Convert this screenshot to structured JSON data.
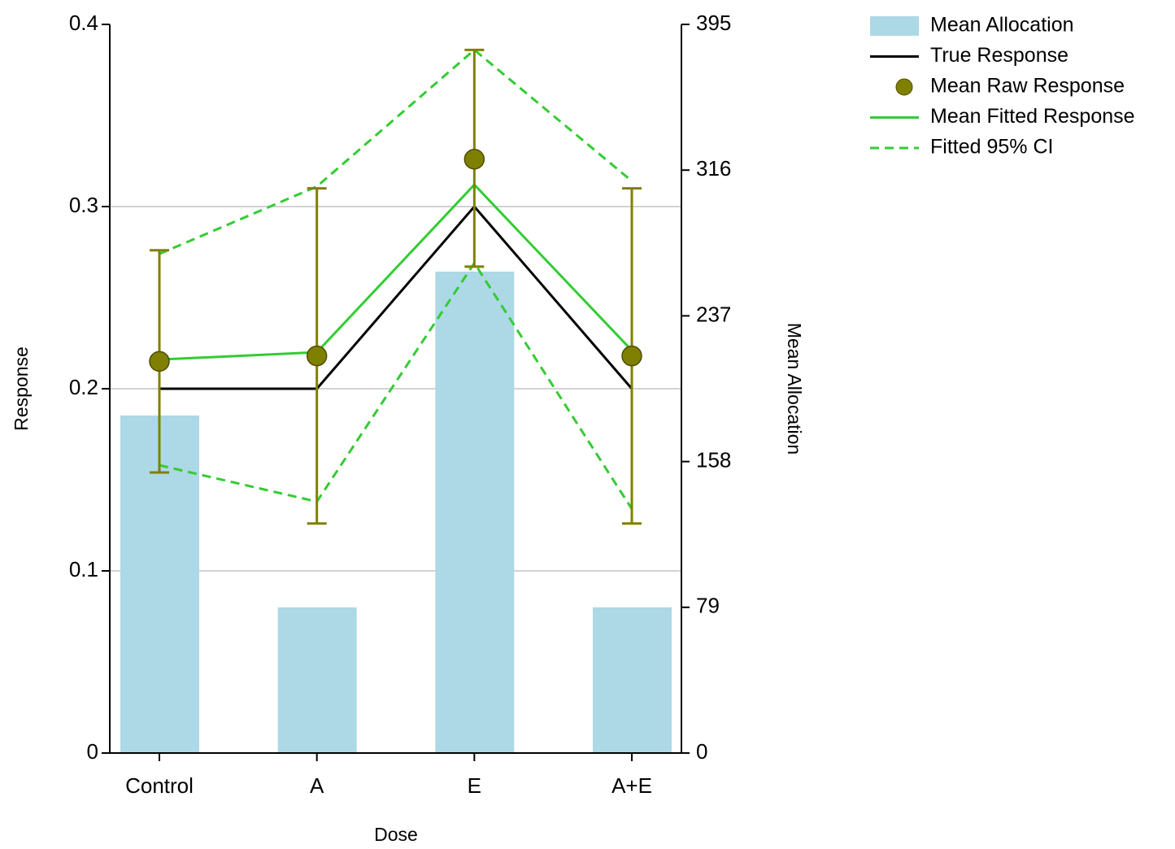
{
  "chart_data": {
    "type": "combo",
    "categories": [
      "Control",
      "A",
      "E",
      "A+E"
    ],
    "x_label": "Dose",
    "y_label": "Response",
    "y2_label": "Mean Allocation",
    "ylim": [
      0,
      0.4
    ],
    "yticks": [
      0,
      0.1,
      0.2,
      0.3,
      0.4
    ],
    "y2lim": [
      0,
      395
    ],
    "y2ticks": [
      0,
      79,
      158,
      237,
      316,
      395
    ],
    "grid": true,
    "legend": "outside-right",
    "series": [
      {
        "name": "Mean Allocation",
        "type": "bar",
        "axis": "y2",
        "color": "#add8e6",
        "values": [
          183,
          79,
          261,
          79
        ]
      },
      {
        "name": "True Response",
        "type": "line",
        "color": "#000000",
        "values": [
          0.2,
          0.2,
          0.3,
          0.2
        ]
      },
      {
        "name": "Mean Raw Response",
        "type": "errorpoint",
        "color": "#808000",
        "values": [
          0.215,
          0.218,
          0.326,
          0.218
        ],
        "lower": [
          0.154,
          0.126,
          0.267,
          0.126
        ],
        "upper": [
          0.276,
          0.31,
          0.386,
          0.31
        ]
      },
      {
        "name": "Mean Fitted Response",
        "type": "line",
        "color": "#33cc33",
        "values": [
          0.216,
          0.22,
          0.312,
          0.221
        ]
      },
      {
        "name": "Fitted 95% CI",
        "type": "band",
        "dashed": true,
        "color": "#33cc33",
        "lower": [
          0.158,
          0.138,
          0.269,
          0.134
        ],
        "upper": [
          0.274,
          0.311,
          0.386,
          0.314
        ]
      }
    ]
  }
}
